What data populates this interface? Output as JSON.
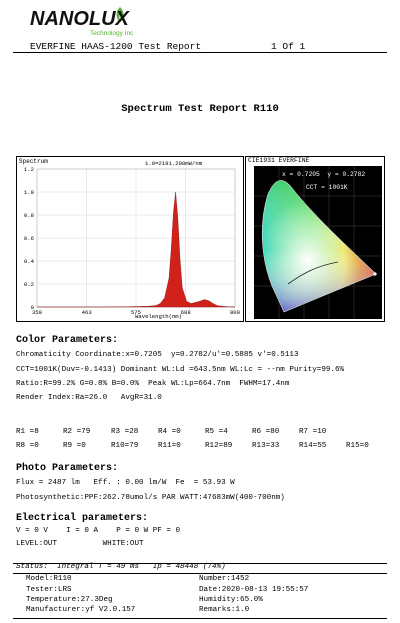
{
  "logo": {
    "text": "NANOLUX",
    "subtitle": "Technology Inc"
  },
  "header": {
    "title": "EVERFINE HAAS-1200 Test Report",
    "page": "1 Of 1"
  },
  "report_title": "Spectrum Test Report R110",
  "spectrum_chart": {
    "label": "Spectrum",
    "peak_label": "1.0=2191.208mW/nm",
    "xlabel": "Wavelength(nm)",
    "x_ticks": [
      "350",
      "463",
      "575",
      "688",
      "800"
    ],
    "y_ticks": [
      "1.2",
      "1.0",
      "0.8",
      "0.6",
      "0.4",
      "0.2",
      "0"
    ]
  },
  "chart_data": {
    "type": "area",
    "x": [
      350,
      400,
      450,
      500,
      550,
      600,
      620,
      630,
      640,
      650,
      655,
      660,
      665,
      670,
      675,
      680,
      690,
      700,
      720,
      730,
      740,
      750,
      760,
      780,
      800
    ],
    "y": [
      0,
      0,
      0,
      0,
      0.002,
      0.006,
      0.012,
      0.03,
      0.08,
      0.25,
      0.5,
      0.82,
      1.0,
      0.78,
      0.42,
      0.17,
      0.05,
      0.03,
      0.05,
      0.065,
      0.055,
      0.03,
      0.012,
      0.003,
      0
    ],
    "xlim": [
      350,
      800
    ],
    "ylim": [
      0,
      1.2
    ],
    "x_ticks": [
      350,
      463,
      575,
      688,
      800
    ],
    "y_ticks": [
      0,
      0.2,
      0.4,
      0.6,
      0.8,
      1.0,
      1.2
    ],
    "fill_color": "#d0221a"
  },
  "cie_chart": {
    "title": "CIE1931 EVERFINE",
    "coord": "x = 0.7205  y = 0.2782",
    "cct": "CCT = 1001K"
  },
  "color": {
    "heading": "Color Parameters:",
    "lines": [
      "Chromaticity Coordinate:x=0.7205  y=0.2782/u'=0.5885 v'=0.5113",
      "CCT=1001K(Duv=-0.1413) Dominant WL:Ld =643.5nm WL:Lc = --nm Purity=99.6%",
      "Ratio:R=99.2% G=0.8% B=0.0%  Peak WL:Lp=664.7nm  FWHM=17.4nm",
      "Render Index:Ra=26.0   AvgR=31.0"
    ]
  },
  "render_index": {
    "row1": [
      "R1 =8",
      "R2 =79",
      "R3 =28",
      "R4 =0",
      "R5 =4",
      "R6 =80",
      "R7 =10"
    ],
    "row2": [
      "R8 =0",
      "R9 =0",
      "R10=79",
      "R11=0",
      "R12=89",
      "R13=33",
      "R14=55",
      "R15=0"
    ]
  },
  "photo": {
    "heading": "Photo Parameters:",
    "line1": "Flux = 2487 lm   Eff. : 0.00 lm/W  Fe  = 53.93 W",
    "line2": "Photosynthetic:PPF:262.78umol/s PAR WATT:47683mW(400-700nm)"
  },
  "electrical": {
    "heading": "Electrical parameters:",
    "line1": "V = 0 V    I = 0 A    P = 0 W PF = 0",
    "line2": "LEVEL:OUT          WHITE:OUT"
  },
  "status": {
    "text": "Status:  Integral T = 49 ms   Ip = 48448 (74%)"
  },
  "footer": {
    "model": "Model:R110",
    "number": "Number:1452",
    "tester": "Tester:LRS",
    "date": "Date:2020-08-13 19:55:57",
    "temperature": "Temperature:27.3Deg",
    "humidity": "Humidity:65.0%",
    "manufacturer": "Manufacturer:yf V2.0.157",
    "remarks": "Remarks:1.0"
  }
}
